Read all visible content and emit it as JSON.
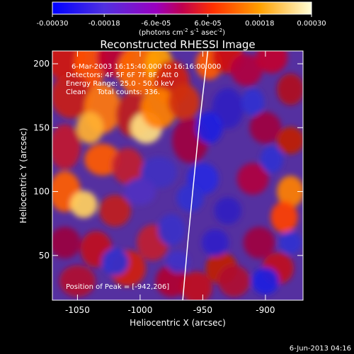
{
  "colorbar": {
    "ticks": [
      "-0.00030",
      "-0.00018",
      "-6.0e-05",
      "6.0e-05",
      "0.00018",
      "0.00030"
    ],
    "unit_label_parts": {
      "a": "(photons cm",
      "b": "-2",
      "c": " s",
      "d": "-1",
      "e": " asec",
      "f": "-2",
      "g": ")"
    },
    "colors": [
      "#0000ff",
      "#5a2ae0",
      "#a000b0",
      "#d00020",
      "#ff6000",
      "#ffc000",
      "#ffffd0"
    ]
  },
  "chart_data": {
    "type": "heatmap",
    "title": "Reconstructed RHESSI Image",
    "xlabel": "Heliocentric X (arcsec)",
    "ylabel": "Heliocentric Y (arcsec)",
    "xlim": [
      -1070,
      -870
    ],
    "ylim": [
      15,
      210
    ],
    "xticks": [
      -1050,
      -1000,
      -950,
      -900
    ],
    "xtick_labels": [
      "-1050",
      "-1000",
      "-950",
      "-900"
    ],
    "yticks": [
      50,
      100,
      150,
      200
    ],
    "ytick_labels": [
      "50",
      "100",
      "150",
      "200"
    ],
    "color_range": [
      -0.0003,
      0.0003
    ],
    "peak": [
      -942,
      206
    ],
    "limb_curve": [
      [
        -966,
        15
      ],
      [
        -962,
        60
      ],
      [
        -958,
        100
      ],
      [
        -953,
        150
      ],
      [
        -946,
        210
      ]
    ],
    "annotations": {
      "time": "6-Mar-2003 16:15:40.000 to 16:16:00.000",
      "detectors": "Detectors: 4F 5F 6F 7F 8F, Att 0",
      "energy": "Energy Range: 25.0 - 50.0 keV",
      "clean": "Clean     Total counts: 336.",
      "peak_label": "Position of Peak = [-942,206]"
    }
  },
  "footer": {
    "timestamp": "6-Jun-2013 04:16"
  }
}
